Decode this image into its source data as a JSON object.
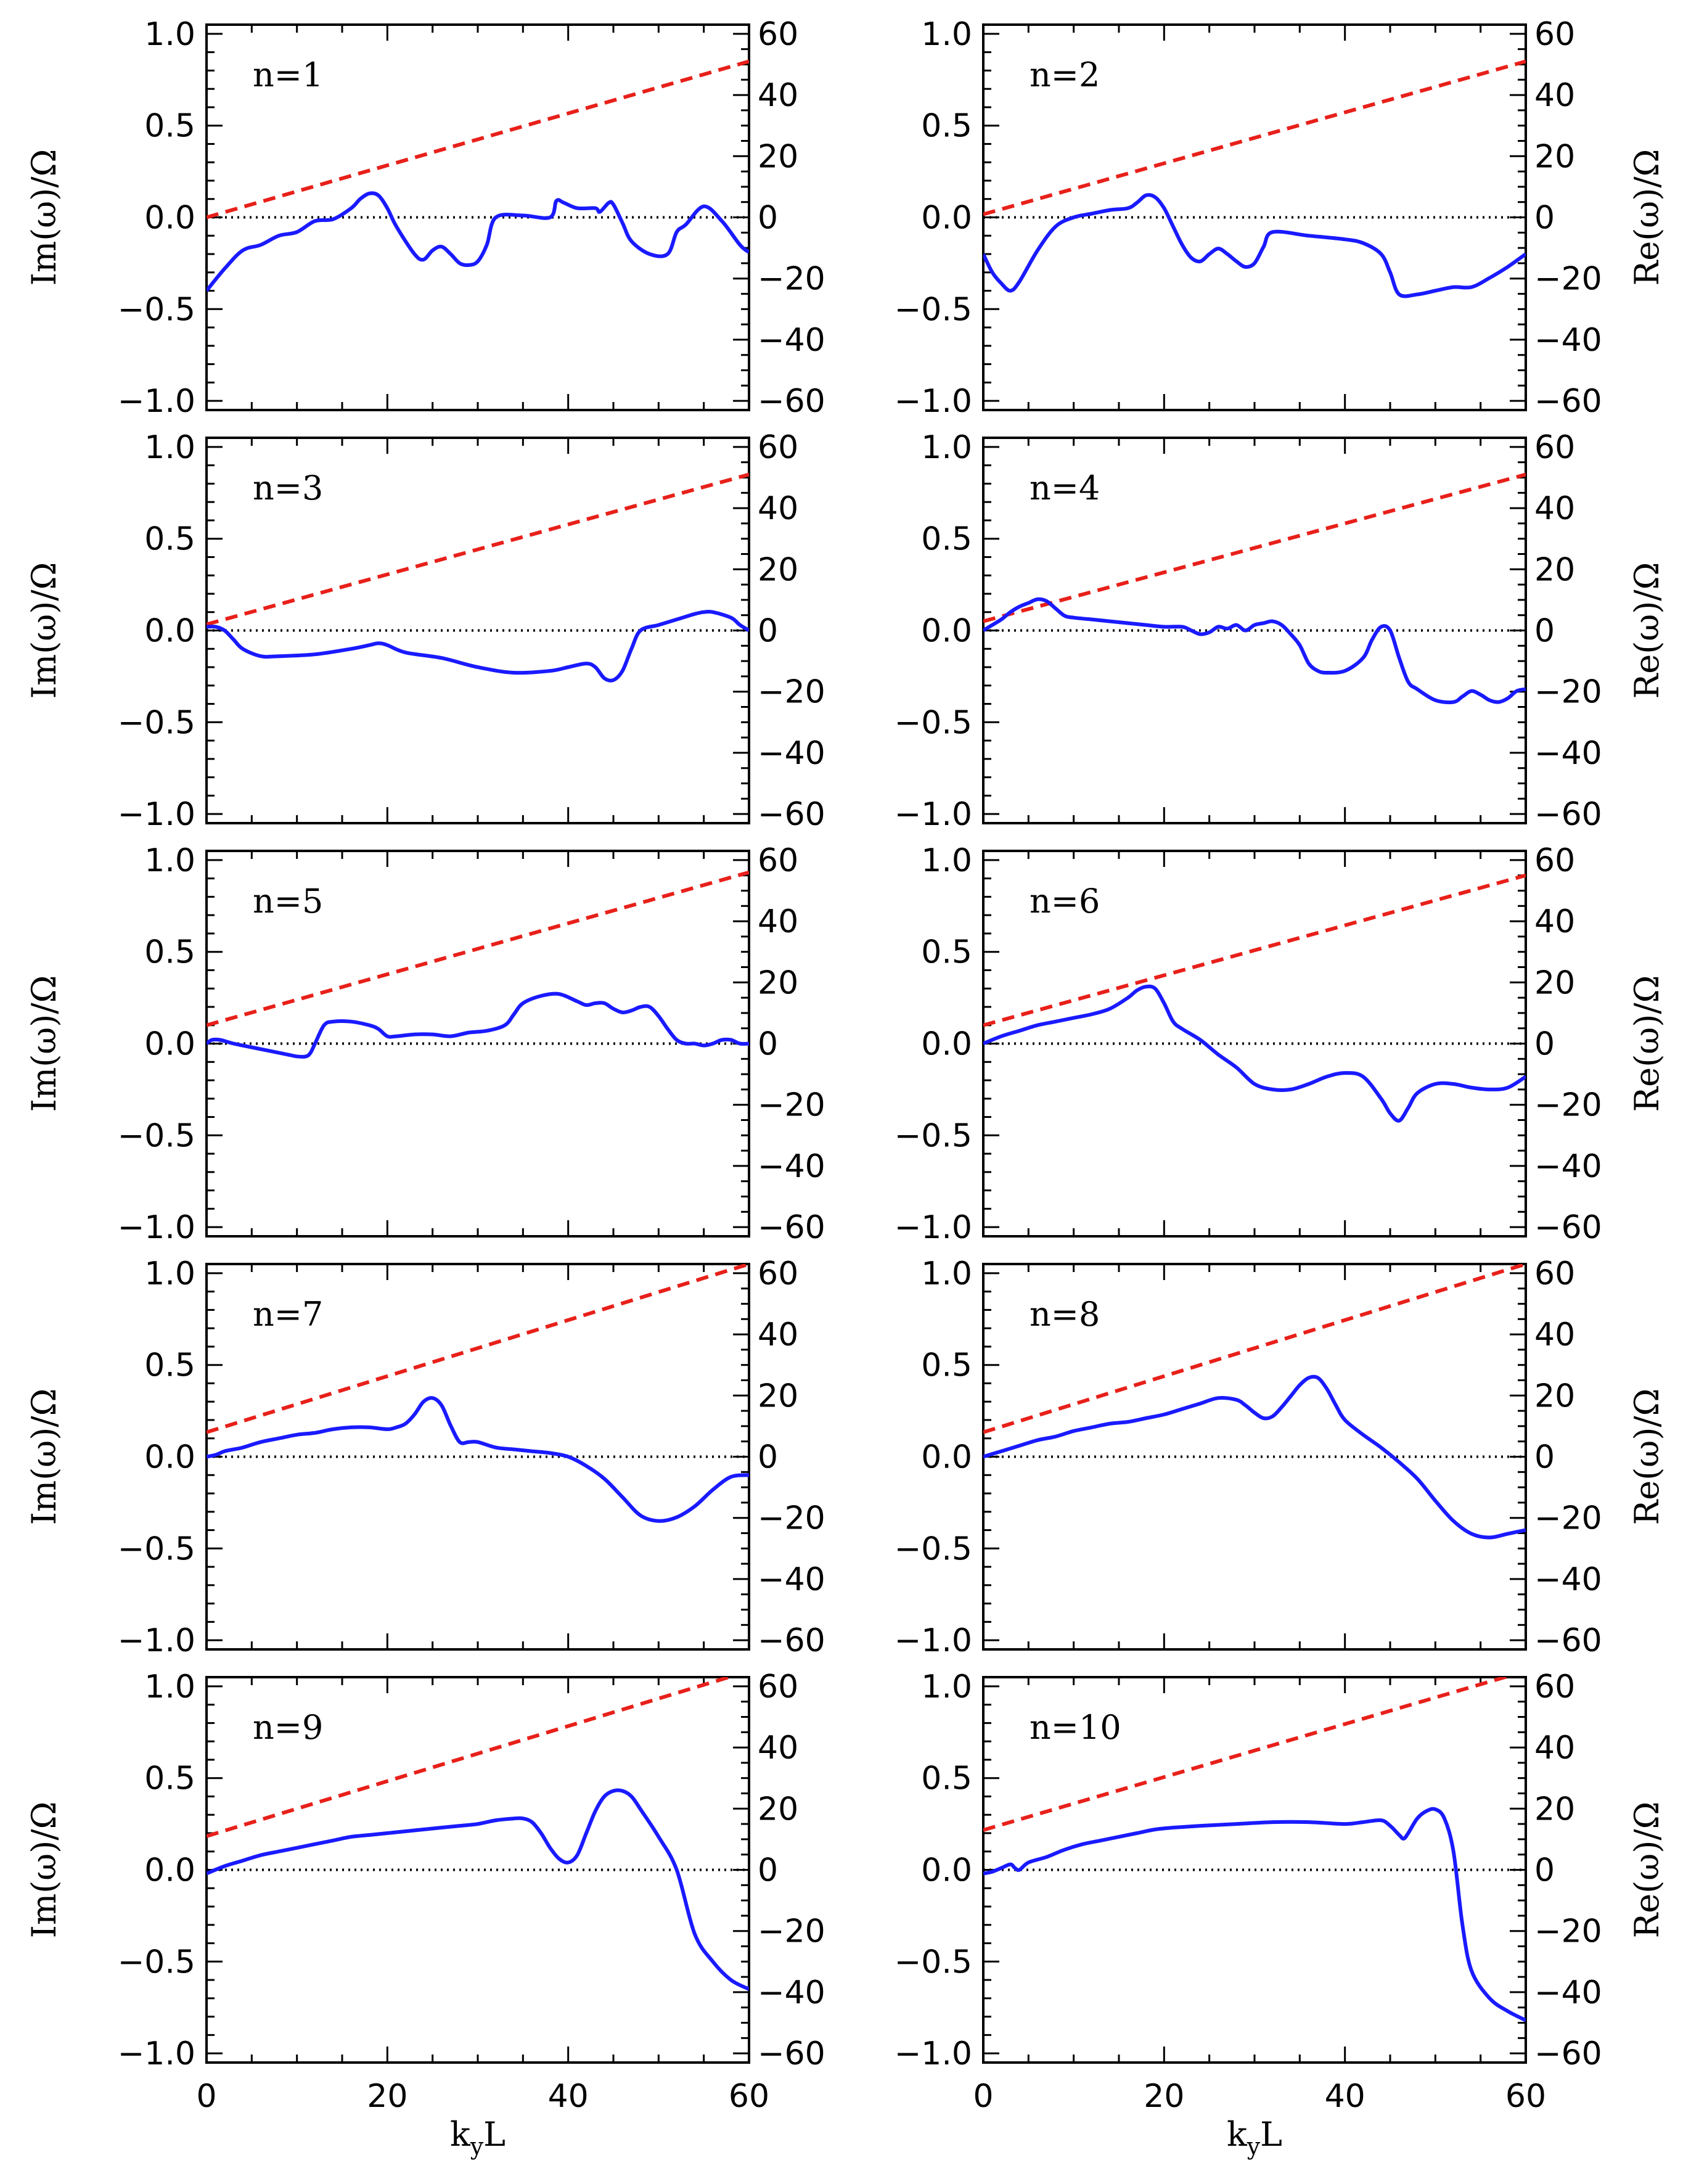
{
  "chart_data": {
    "type": "line",
    "layout": "5 rows x 2 columns of panels",
    "xlabel": "k",
    "xlabel_sub": "y",
    "xlabel_suffix": "L",
    "ylabel_left": "Im(ω)/Ω",
    "ylabel_right": "Re(ω)/Ω",
    "xlim": [
      0,
      60
    ],
    "xticks": [
      0,
      20,
      40,
      60
    ],
    "xtick_labels": [
      "0",
      "20",
      "40",
      "60"
    ],
    "ylim_left": [
      -1.05,
      1.05
    ],
    "yticks_left": [
      -1.0,
      -0.5,
      0.0,
      0.5,
      1.0
    ],
    "ytick_labels_left": [
      "−1.0",
      "−0.5",
      "0.0",
      "0.5",
      "1.0"
    ],
    "ylim_right": [
      -63,
      63
    ],
    "yticks_right": [
      -60,
      -40,
      -20,
      0,
      20,
      40,
      60
    ],
    "ytick_labels_right": [
      "−60",
      "−40",
      "−20",
      "0",
      "20",
      "40",
      "60"
    ],
    "colors": {
      "im_series": "#1a1aff",
      "re_series": "#e8201a",
      "zero_line": "#000000"
    },
    "panels": [
      {
        "label": "n=1",
        "re_line": {
          "x": [
            0,
            60
          ],
          "y": [
            0,
            51
          ]
        },
        "im": {
          "x": [
            0,
            2,
            4,
            6,
            8,
            10,
            12,
            14,
            16,
            17,
            18,
            19,
            20,
            21,
            23,
            24,
            25,
            26,
            27,
            28,
            29,
            30,
            31,
            32,
            35,
            38,
            38.7,
            39.5,
            41,
            43,
            43.5,
            44.5,
            45,
            46,
            47,
            49,
            51,
            52,
            53,
            55,
            57,
            59,
            60
          ],
          "y": [
            -0.4,
            -0.28,
            -0.18,
            -0.15,
            -0.1,
            -0.08,
            -0.02,
            -0.01,
            0.05,
            0.1,
            0.13,
            0.12,
            0.05,
            -0.05,
            -0.2,
            -0.23,
            -0.18,
            -0.16,
            -0.2,
            -0.25,
            -0.26,
            -0.24,
            -0.15,
            0.0,
            0.01,
            0.0,
            0.09,
            0.08,
            0.05,
            0.05,
            0.03,
            0.08,
            0.07,
            -0.03,
            -0.13,
            -0.2,
            -0.2,
            -0.08,
            -0.04,
            0.06,
            -0.02,
            -0.15,
            -0.19
          ]
        }
      },
      {
        "label": "n=2",
        "re_line": {
          "x": [
            0,
            60
          ],
          "y": [
            1,
            51
          ]
        },
        "im": {
          "x": [
            0,
            1,
            2,
            3,
            4,
            6,
            8,
            10,
            12,
            14,
            16,
            17,
            18,
            19,
            20,
            21,
            22,
            23,
            24,
            25,
            26,
            27,
            28,
            29,
            30,
            31,
            32,
            36,
            40,
            42,
            44,
            45,
            46,
            48,
            50,
            52,
            54,
            56,
            58,
            60
          ],
          "y": [
            -0.2,
            -0.3,
            -0.36,
            -0.4,
            -0.35,
            -0.18,
            -0.05,
            0.0,
            0.02,
            0.04,
            0.05,
            0.08,
            0.12,
            0.11,
            0.05,
            -0.05,
            -0.15,
            -0.22,
            -0.24,
            -0.2,
            -0.17,
            -0.2,
            -0.24,
            -0.27,
            -0.25,
            -0.16,
            -0.08,
            -0.1,
            -0.12,
            -0.14,
            -0.2,
            -0.3,
            -0.42,
            -0.42,
            -0.4,
            -0.38,
            -0.38,
            -0.33,
            -0.27,
            -0.2
          ]
        }
      },
      {
        "label": "n=3",
        "re_line": {
          "x": [
            0,
            60
          ],
          "y": [
            2,
            51
          ]
        },
        "im": {
          "x": [
            0,
            1,
            2,
            3,
            4,
            6,
            8,
            12,
            16,
            18,
            19,
            20,
            22,
            26,
            30,
            34,
            38,
            40,
            42,
            43,
            44,
            45,
            46,
            47,
            48,
            50,
            52,
            54,
            55,
            56,
            58,
            59,
            60
          ],
          "y": [
            0.02,
            0.02,
            0.0,
            -0.05,
            -0.1,
            -0.14,
            -0.14,
            -0.13,
            -0.1,
            -0.08,
            -0.07,
            -0.08,
            -0.12,
            -0.15,
            -0.2,
            -0.23,
            -0.22,
            -0.2,
            -0.18,
            -0.2,
            -0.26,
            -0.27,
            -0.22,
            -0.1,
            0.0,
            0.03,
            0.06,
            0.09,
            0.1,
            0.1,
            0.07,
            0.03,
            0.0
          ]
        }
      },
      {
        "label": "n=4",
        "re_line": {
          "x": [
            0,
            60
          ],
          "y": [
            3,
            51
          ]
        },
        "im": {
          "x": [
            0,
            1,
            2,
            3,
            4,
            5,
            6,
            7,
            8,
            9,
            10,
            12,
            14,
            16,
            18,
            20,
            22,
            23,
            24,
            25,
            26,
            27,
            28,
            29,
            30,
            31,
            32,
            33,
            34,
            35,
            36,
            37,
            38,
            40,
            42,
            43,
            44,
            45,
            46,
            47,
            48,
            50,
            52,
            53,
            54,
            55,
            56,
            57,
            58,
            59,
            60
          ],
          "y": [
            0.0,
            0.03,
            0.06,
            0.1,
            0.13,
            0.15,
            0.17,
            0.16,
            0.12,
            0.08,
            0.07,
            0.06,
            0.05,
            0.04,
            0.03,
            0.02,
            0.02,
            0.0,
            -0.02,
            -0.01,
            0.02,
            0.01,
            0.03,
            0.0,
            0.03,
            0.04,
            0.05,
            0.03,
            -0.02,
            -0.08,
            -0.18,
            -0.22,
            -0.23,
            -0.22,
            -0.15,
            -0.05,
            0.02,
            0.0,
            -0.15,
            -0.28,
            -0.32,
            -0.38,
            -0.39,
            -0.36,
            -0.33,
            -0.35,
            -0.38,
            -0.39,
            -0.37,
            -0.33,
            -0.32
          ]
        }
      },
      {
        "label": "n=5",
        "re_line": {
          "x": [
            0,
            60
          ],
          "y": [
            6,
            56
          ]
        },
        "im": {
          "x": [
            0,
            0.6,
            1.5,
            3,
            5,
            7,
            9,
            10,
            11,
            11.5,
            12,
            13,
            14,
            16,
            18,
            19,
            20,
            21,
            23,
            25,
            27,
            29,
            31,
            33,
            34,
            35,
            37,
            39,
            41,
            42,
            43,
            44,
            45,
            46,
            47,
            48,
            49,
            50,
            51,
            52,
            53,
            54,
            55,
            56,
            57,
            58,
            59,
            60
          ],
          "y": [
            0.0,
            0.02,
            0.02,
            0.0,
            -0.02,
            -0.04,
            -0.06,
            -0.07,
            -0.07,
            -0.05,
            0.0,
            0.1,
            0.12,
            0.12,
            0.1,
            0.08,
            0.04,
            0.04,
            0.05,
            0.05,
            0.04,
            0.06,
            0.07,
            0.1,
            0.16,
            0.22,
            0.26,
            0.27,
            0.23,
            0.21,
            0.22,
            0.22,
            0.19,
            0.17,
            0.18,
            0.2,
            0.2,
            0.15,
            0.08,
            0.02,
            0.0,
            0.0,
            -0.01,
            0.0,
            0.02,
            0.02,
            0.0,
            0.0
          ]
        }
      },
      {
        "label": "n=6",
        "re_line": {
          "x": [
            0,
            60
          ],
          "y": [
            6,
            55
          ]
        },
        "im": {
          "x": [
            0,
            2,
            4,
            6,
            8,
            10,
            12,
            14,
            16,
            17,
            18,
            19,
            20,
            21,
            22,
            24,
            26,
            28,
            30,
            32,
            34,
            36,
            38,
            40,
            42,
            44,
            45,
            46,
            47,
            48,
            50,
            52,
            54,
            56,
            58,
            60
          ],
          "y": [
            0.0,
            0.04,
            0.07,
            0.1,
            0.12,
            0.14,
            0.16,
            0.19,
            0.25,
            0.29,
            0.31,
            0.3,
            0.22,
            0.12,
            0.08,
            0.02,
            -0.06,
            -0.13,
            -0.22,
            -0.25,
            -0.25,
            -0.22,
            -0.18,
            -0.16,
            -0.18,
            -0.3,
            -0.38,
            -0.42,
            -0.35,
            -0.27,
            -0.22,
            -0.22,
            -0.24,
            -0.25,
            -0.24,
            -0.18
          ]
        }
      },
      {
        "label": "n=7",
        "re_line": {
          "x": [
            0,
            60
          ],
          "y": [
            8,
            63
          ]
        },
        "im": {
          "x": [
            0,
            1,
            2,
            3,
            4,
            6,
            8,
            10,
            12,
            14,
            16,
            18,
            20,
            21,
            22,
            23,
            24,
            25,
            26,
            27,
            28,
            29,
            30,
            32,
            34,
            36,
            38,
            40,
            42,
            44,
            46,
            48,
            50,
            52,
            54,
            56,
            58,
            60
          ],
          "y": [
            0.0,
            0.01,
            0.03,
            0.04,
            0.05,
            0.08,
            0.1,
            0.12,
            0.13,
            0.15,
            0.16,
            0.16,
            0.15,
            0.16,
            0.18,
            0.23,
            0.3,
            0.32,
            0.28,
            0.17,
            0.08,
            0.08,
            0.08,
            0.05,
            0.04,
            0.03,
            0.02,
            0.0,
            -0.05,
            -0.12,
            -0.22,
            -0.32,
            -0.35,
            -0.33,
            -0.27,
            -0.18,
            -0.11,
            -0.1
          ]
        }
      },
      {
        "label": "n=8",
        "re_line": {
          "x": [
            0,
            60
          ],
          "y": [
            8,
            63
          ]
        },
        "im": {
          "x": [
            0,
            2,
            4,
            6,
            8,
            10,
            12,
            14,
            16,
            18,
            20,
            22,
            24,
            26,
            28,
            29,
            30,
            31,
            32,
            33,
            34,
            35,
            36,
            37,
            38,
            39,
            40,
            42,
            44,
            46,
            48,
            50,
            52,
            54,
            56,
            58,
            60
          ],
          "y": [
            0.0,
            0.03,
            0.06,
            0.09,
            0.11,
            0.14,
            0.16,
            0.18,
            0.19,
            0.21,
            0.23,
            0.26,
            0.29,
            0.32,
            0.31,
            0.28,
            0.24,
            0.21,
            0.22,
            0.27,
            0.33,
            0.39,
            0.43,
            0.43,
            0.37,
            0.28,
            0.2,
            0.12,
            0.05,
            -0.03,
            -0.12,
            -0.24,
            -0.35,
            -0.42,
            -0.44,
            -0.42,
            -0.4
          ]
        }
      },
      {
        "label": "n=9",
        "re_line": {
          "x": [
            0,
            60
          ],
          "y": [
            11,
            65
          ]
        },
        "im": {
          "x": [
            0,
            2,
            4,
            6,
            8,
            10,
            12,
            14,
            16,
            18,
            20,
            22,
            24,
            26,
            28,
            30,
            32,
            34,
            35,
            36,
            37,
            38,
            39,
            40,
            41,
            42,
            43,
            44,
            45,
            46,
            47,
            48,
            50,
            52,
            54,
            56,
            58,
            60
          ],
          "y": [
            -0.02,
            0.02,
            0.05,
            0.08,
            0.1,
            0.12,
            0.14,
            0.16,
            0.18,
            0.19,
            0.2,
            0.21,
            0.22,
            0.23,
            0.24,
            0.25,
            0.27,
            0.28,
            0.28,
            0.26,
            0.2,
            0.12,
            0.06,
            0.04,
            0.08,
            0.2,
            0.32,
            0.4,
            0.43,
            0.43,
            0.4,
            0.33,
            0.18,
            0.0,
            -0.35,
            -0.5,
            -0.6,
            -0.65
          ]
        }
      },
      {
        "label": "n=10",
        "re_line": {
          "x": [
            0,
            60
          ],
          "y": [
            13,
            65
          ]
        },
        "im": {
          "x": [
            0,
            1,
            2,
            3,
            3.5,
            4,
            5,
            7,
            9,
            11,
            13,
            15,
            17,
            19,
            21,
            24,
            28,
            32,
            36,
            40,
            42,
            44,
            45,
            46,
            46.5,
            47,
            48,
            49,
            50,
            51,
            52,
            53,
            54,
            56,
            58,
            60
          ],
          "y": [
            -0.02,
            -0.01,
            0.01,
            0.03,
            0.01,
            0.0,
            0.04,
            0.07,
            0.11,
            0.14,
            0.16,
            0.18,
            0.2,
            0.22,
            0.23,
            0.24,
            0.25,
            0.26,
            0.26,
            0.25,
            0.26,
            0.27,
            0.24,
            0.19,
            0.17,
            0.2,
            0.28,
            0.32,
            0.33,
            0.28,
            0.1,
            -0.3,
            -0.55,
            -0.7,
            -0.77,
            -0.82
          ]
        }
      }
    ]
  }
}
